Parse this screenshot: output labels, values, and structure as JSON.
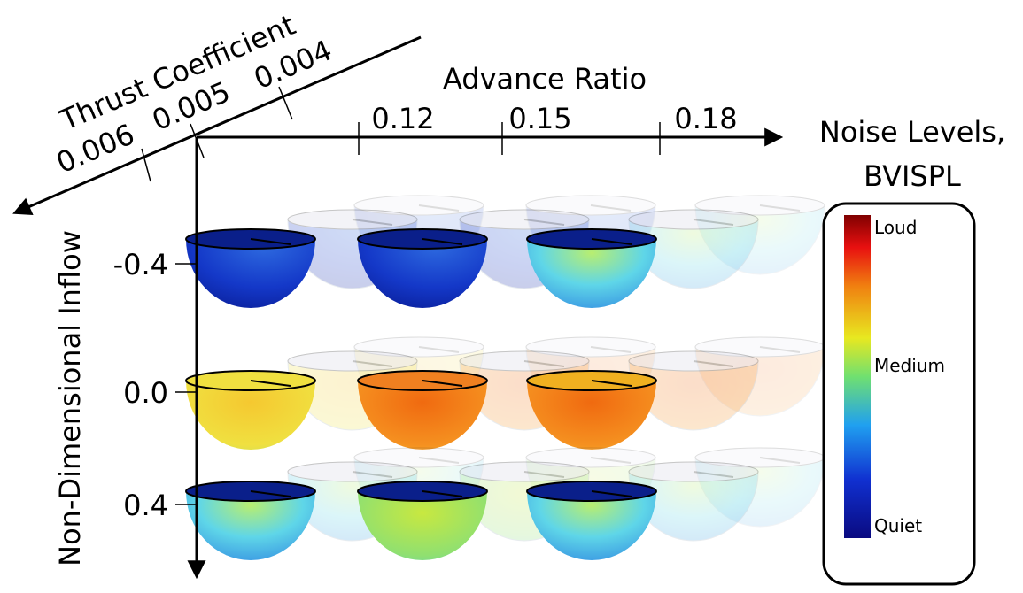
{
  "axes": {
    "thrust_coefficient": {
      "label": "Thrust Coefficient",
      "ticks": [
        "0.006",
        "0.005",
        "0.004"
      ]
    },
    "advance_ratio": {
      "label": "Advance Ratio",
      "ticks": [
        "0.12",
        "0.15",
        "0.18"
      ]
    },
    "inflow": {
      "label": "Non-Dimensional Inflow",
      "ticks": [
        "-0.4",
        "0.0",
        "0.4"
      ]
    }
  },
  "legend": {
    "title": [
      "Noise Levels,",
      "BVISPL"
    ],
    "labels": {
      "high": "Loud",
      "mid": "Medium",
      "low": "Quiet"
    }
  }
}
